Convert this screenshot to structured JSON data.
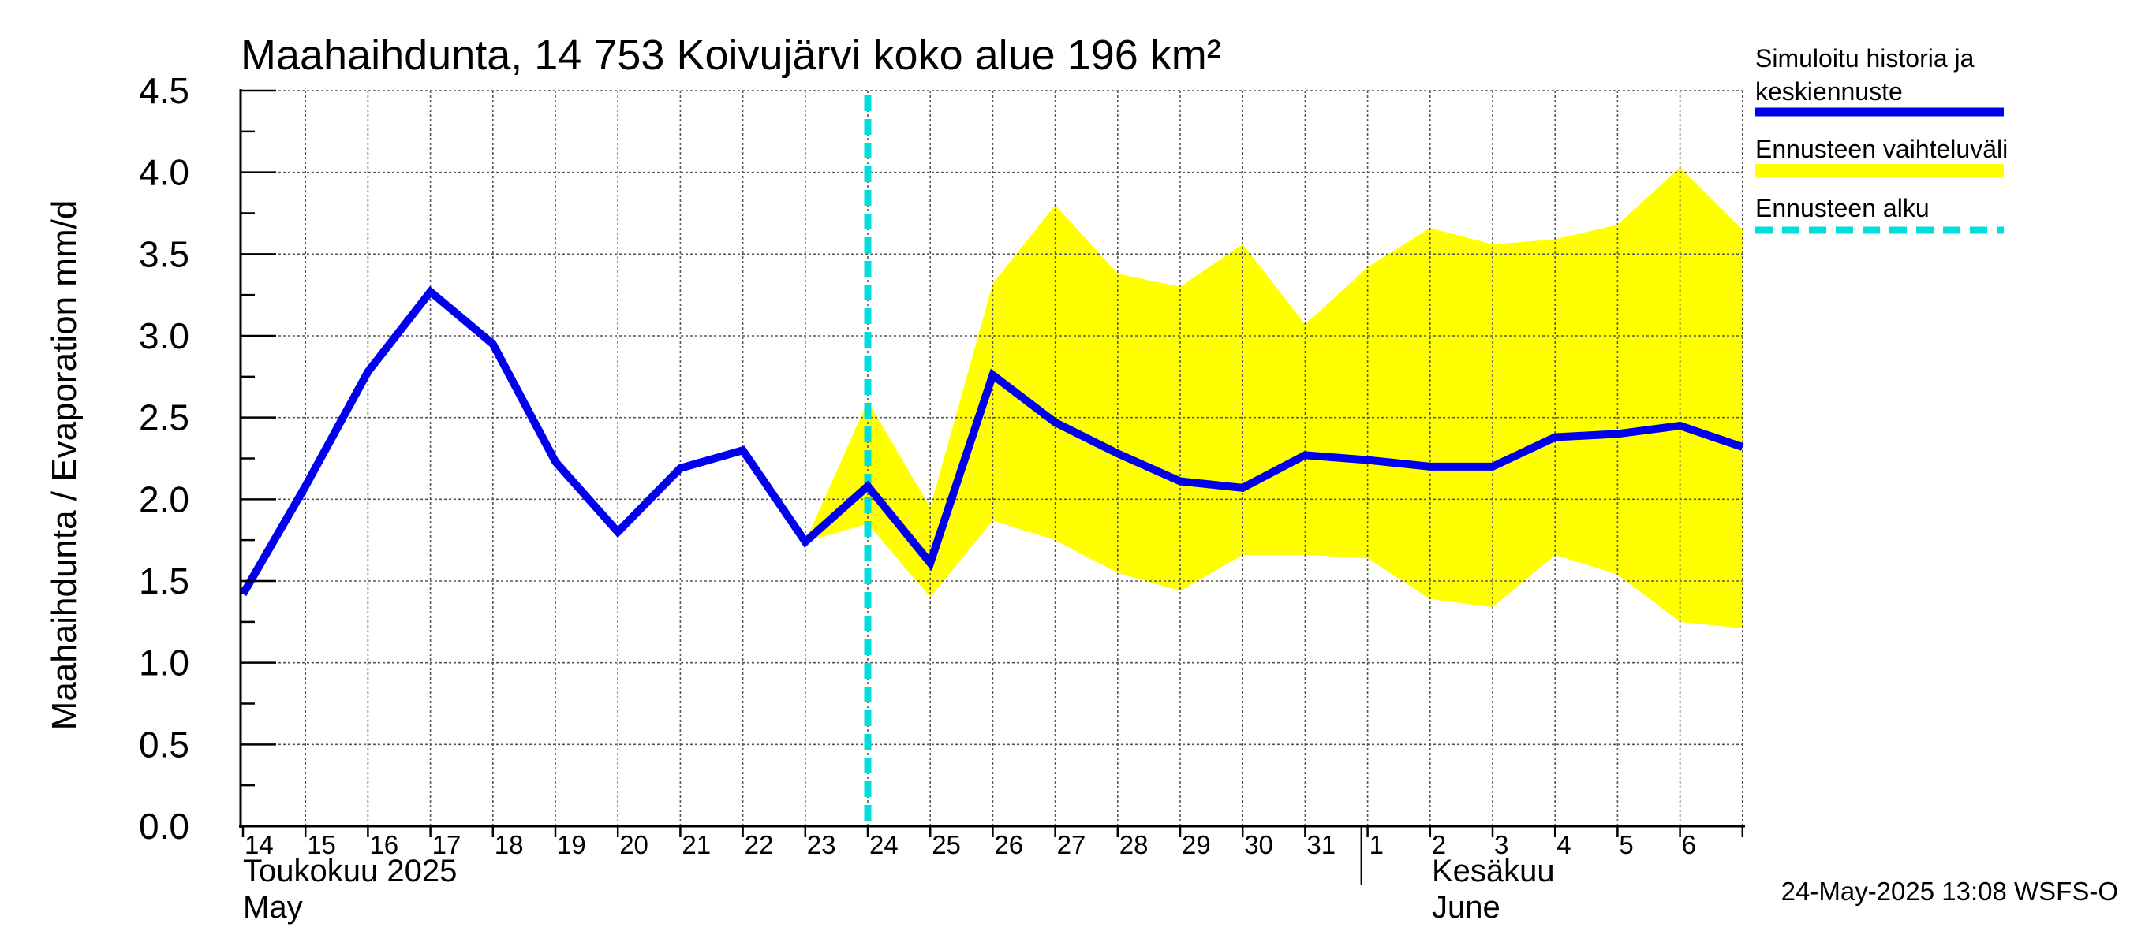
{
  "chart_data": {
    "type": "line",
    "title": "Maahaihdunta, 14 753 Koivujärvi koko alue 196 km²",
    "ylabel": "Maahaihdunta / Evaporation   mm/d",
    "ylim": [
      0,
      4.5
    ],
    "yticks": [
      "0.0",
      "0.5",
      "1.0",
      "1.5",
      "2.0",
      "2.5",
      "3.0",
      "3.5",
      "4.0",
      "4.5"
    ],
    "x_day_labels": [
      "14",
      "15",
      "16",
      "17",
      "18",
      "19",
      "20",
      "21",
      "22",
      "23",
      "24",
      "25",
      "26",
      "27",
      "28",
      "29",
      "30",
      "31",
      "1",
      "2",
      "3",
      "4",
      "5",
      "6"
    ],
    "month_labels": [
      {
        "line1": "Toukokuu  2025",
        "line2": "May"
      },
      {
        "line1": "Kesäkuu",
        "line2": "June"
      }
    ],
    "series": [
      {
        "name": "Simuloitu historia ja keskiennuste",
        "color": "#0000ee",
        "x": [
          "2025-05-14",
          "2025-05-15",
          "2025-05-16",
          "2025-05-17",
          "2025-05-18",
          "2025-05-19",
          "2025-05-20",
          "2025-05-21",
          "2025-05-22",
          "2025-05-23",
          "2025-05-24",
          "2025-05-25",
          "2025-05-26",
          "2025-05-27",
          "2025-05-28",
          "2025-05-29",
          "2025-05-30",
          "2025-05-31",
          "2025-06-01",
          "2025-06-02",
          "2025-06-03",
          "2025-06-04",
          "2025-06-05",
          "2025-06-06",
          "2025-06-07"
        ],
        "values": [
          1.42,
          2.08,
          2.78,
          3.27,
          2.95,
          2.23,
          1.8,
          2.19,
          2.3,
          1.74,
          2.08,
          1.61,
          2.76,
          2.47,
          2.28,
          2.11,
          2.07,
          2.27,
          2.24,
          2.2,
          2.2,
          2.38,
          2.4,
          2.45,
          2.32
        ]
      }
    ],
    "band": {
      "name": "Ennusteen vaihteluväli",
      "color": "#ffff00",
      "x": [
        "2025-05-23",
        "2025-05-24",
        "2025-05-25",
        "2025-05-26",
        "2025-05-27",
        "2025-05-28",
        "2025-05-29",
        "2025-05-30",
        "2025-05-31",
        "2025-06-01",
        "2025-06-02",
        "2025-06-03",
        "2025-06-04",
        "2025-06-05",
        "2025-06-06",
        "2025-06-07"
      ],
      "upper": [
        1.74,
        2.6,
        1.95,
        3.32,
        3.8,
        3.38,
        3.3,
        3.56,
        3.07,
        3.42,
        3.66,
        3.56,
        3.59,
        3.68,
        4.03,
        3.65
      ],
      "lower": [
        1.74,
        1.85,
        1.4,
        1.87,
        1.75,
        1.55,
        1.44,
        1.66,
        1.66,
        1.64,
        1.39,
        1.34,
        1.66,
        1.54,
        1.25,
        1.21
      ]
    },
    "forecast_start": {
      "name": "Ennusteen alku",
      "x": "2025-05-24",
      "color": "#00dddd"
    },
    "grid": true
  },
  "legend": [
    {
      "label_line1": "Simuloitu historia ja",
      "label_line2": "keskiennuste",
      "color": "#0000ee",
      "style": "solid"
    },
    {
      "label_line1": "Ennusteen vaihteluväli",
      "label_line2": "",
      "color": "#ffff00",
      "style": "band"
    },
    {
      "label_line1": "Ennusteen alku",
      "label_line2": "",
      "color": "#00dddd",
      "style": "dashed"
    }
  ],
  "footer": "24-May-2025 13:08 WSFS-O"
}
